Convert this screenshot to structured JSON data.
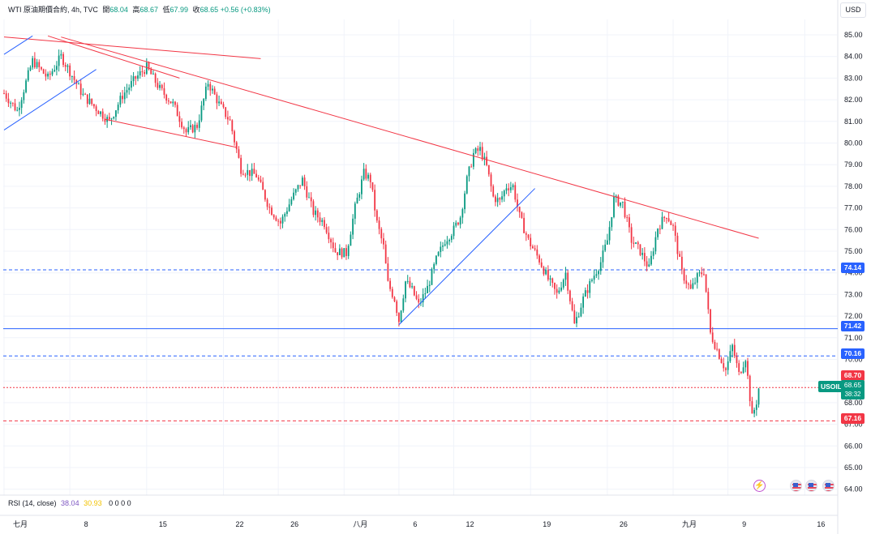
{
  "legend": {
    "symbol": "WTI 原油期價合約, 4h, TVC",
    "open_label": "開",
    "open": "68.04",
    "high_label": "高",
    "high": "68.67",
    "low_label": "低",
    "low": "67.99",
    "close_label": "收",
    "close": "68.65",
    "change": "+0.56 (+0.83%)"
  },
  "currency_button": "USD",
  "rsi_legend": {
    "label": "RSI (14, close)",
    "value1": "38.04",
    "value2": "30.93",
    "zeros": "0 0 0 0"
  },
  "tags": {
    "level_74": "74.14",
    "level_71": "71.42",
    "level_70": "70.16",
    "high_tag": "68.70",
    "symbol_tag": "USOIL",
    "last_price": "68.65",
    "countdown": "38:32",
    "low_tag": "67.16"
  },
  "colors": {
    "up": "#089981",
    "down": "#f23645",
    "trend_red": "#f23645",
    "trend_blue": "#2962ff"
  },
  "events": {
    "bolt_icon": "lightning-icon",
    "flag_icon": "us-flag-icon"
  },
  "chart_data": {
    "type": "candlestick",
    "timeframe": "4h",
    "ylim": [
      63.6,
      85.7
    ],
    "y_ticks": [
      "64.00",
      "65.00",
      "66.00",
      "67.00",
      "68.00",
      "69.00",
      "70.00",
      "71.00",
      "72.00",
      "73.00",
      "74.00",
      "75.00",
      "76.00",
      "77.00",
      "78.00",
      "79.00",
      "80.00",
      "81.00",
      "82.00",
      "83.00",
      "84.00",
      "85.00"
    ],
    "x_ticks": [
      "七月",
      "8",
      "15",
      "22",
      "26",
      "八月",
      "6",
      "12",
      "19",
      "26",
      "九月",
      "9",
      "16"
    ],
    "x_tick_index": [
      0,
      30,
      65,
      100,
      125,
      155,
      180,
      205,
      240,
      275,
      305,
      330,
      365
    ],
    "bars_per_x_unit": 1,
    "price_path": [
      [
        0,
        82.3
      ],
      [
        6,
        81.5
      ],
      [
        13,
        83.8
      ],
      [
        20,
        83.0
      ],
      [
        26,
        84.0
      ],
      [
        30,
        83.3
      ],
      [
        36,
        82.2
      ],
      [
        42,
        81.6
      ],
      [
        48,
        81.0
      ],
      [
        54,
        82.2
      ],
      [
        60,
        83.0
      ],
      [
        65,
        83.5
      ],
      [
        71,
        82.5
      ],
      [
        77,
        81.8
      ],
      [
        83,
        80.5
      ],
      [
        88,
        80.8
      ],
      [
        93,
        82.8
      ],
      [
        98,
        81.8
      ],
      [
        103,
        81.0
      ],
      [
        108,
        78.8
      ],
      [
        115,
        78.5
      ],
      [
        121,
        77.0
      ],
      [
        126,
        76.3
      ],
      [
        131,
        77.4
      ],
      [
        136,
        78.3
      ],
      [
        141,
        76.8
      ],
      [
        146,
        76.3
      ],
      [
        151,
        75.0
      ],
      [
        156,
        74.9
      ],
      [
        160,
        77.0
      ],
      [
        164,
        78.6
      ],
      [
        167,
        78.3
      ],
      [
        170,
        76.3
      ],
      [
        173,
        75.2
      ],
      [
        175,
        73.5
      ],
      [
        178,
        72.8
      ],
      [
        180,
        71.8
      ],
      [
        183,
        73.6
      ],
      [
        186,
        73.2
      ],
      [
        189,
        72.5
      ],
      [
        193,
        73.3
      ],
      [
        197,
        74.6
      ],
      [
        201,
        75.5
      ],
      [
        205,
        76.0
      ],
      [
        208,
        76.6
      ],
      [
        211,
        78.3
      ],
      [
        214,
        79.5
      ],
      [
        217,
        79.7
      ],
      [
        220,
        78.9
      ],
      [
        223,
        77.5
      ],
      [
        226,
        77.3
      ],
      [
        229,
        78.0
      ],
      [
        232,
        78.0
      ],
      [
        235,
        76.6
      ],
      [
        239,
        75.5
      ],
      [
        244,
        74.6
      ],
      [
        248,
        73.7
      ],
      [
        252,
        73.0
      ],
      [
        256,
        74.0
      ],
      [
        260,
        71.6
      ],
      [
        264,
        72.8
      ],
      [
        268,
        73.7
      ],
      [
        272,
        74.5
      ],
      [
        275,
        75.5
      ],
      [
        278,
        77.4
      ],
      [
        282,
        77.2
      ],
      [
        286,
        75.5
      ],
      [
        290,
        75.0
      ],
      [
        294,
        74.2
      ],
      [
        298,
        76.1
      ],
      [
        302,
        76.7
      ],
      [
        305,
        76.1
      ],
      [
        309,
        74.0
      ],
      [
        313,
        73.2
      ],
      [
        316,
        73.8
      ],
      [
        319,
        74.1
      ],
      [
        322,
        71.2
      ],
      [
        326,
        70.2
      ],
      [
        329,
        69.5
      ],
      [
        332,
        70.6
      ],
      [
        335,
        69.3
      ],
      [
        338,
        70.1
      ],
      [
        341,
        67.3
      ],
      [
        343,
        68.05
      ],
      [
        344,
        68.65
      ]
    ],
    "trendlines": [
      {
        "color": "red",
        "from": [
          0,
          84.9
        ],
        "to": [
          117,
          83.9
        ]
      },
      {
        "color": "red",
        "from": [
          26,
          84.9
        ],
        "to": [
          344,
          75.6
        ]
      },
      {
        "color": "red",
        "from": [
          20,
          84.95
        ],
        "to": [
          80,
          83.0
        ]
      },
      {
        "color": "red",
        "from": [
          46,
          81.1
        ],
        "to": [
          106,
          79.8
        ]
      },
      {
        "color": "blue",
        "from": [
          0,
          80.6
        ],
        "to": [
          42,
          83.4
        ]
      },
      {
        "color": "blue",
        "from": [
          0,
          84.1
        ],
        "to": [
          13,
          84.95
        ]
      },
      {
        "color": "blue",
        "from": [
          180,
          71.6
        ],
        "to": [
          242,
          77.9
        ]
      }
    ],
    "horizontal_levels": [
      {
        "value": 74.14,
        "style": "dashed",
        "color": "blue"
      },
      {
        "value": 71.42,
        "style": "solid",
        "color": "blue"
      },
      {
        "value": 70.16,
        "style": "dashed",
        "color": "blue"
      },
      {
        "value": 68.7,
        "style": "dotted",
        "color": "red"
      },
      {
        "value": 67.16,
        "style": "dashed",
        "color": "red"
      }
    ]
  }
}
